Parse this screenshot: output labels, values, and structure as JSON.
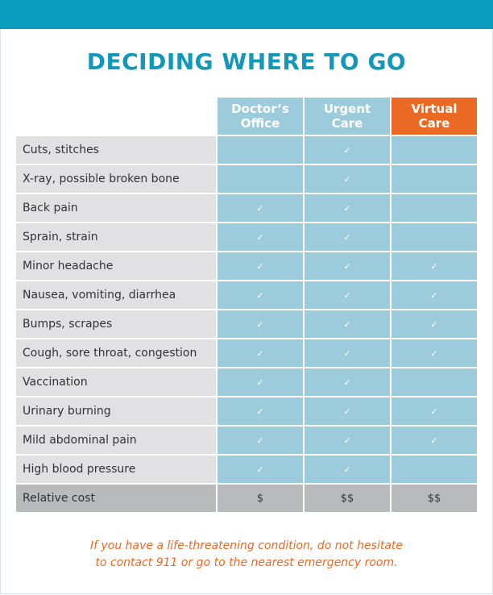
{
  "header": {
    "title": "DECIDING WHERE TO GO"
  },
  "table": {
    "columns": [
      "Doctor’s Office",
      "Urgent Care",
      "Virtual Care"
    ],
    "rows": [
      [
        "Cuts, stitches",
        null,
        "✓",
        null
      ],
      [
        "X-ray, possible broken bone",
        null,
        "✓",
        null
      ],
      [
        "Back pain",
        "✓",
        "✓",
        null
      ],
      [
        "Sprain, strain",
        "✓",
        "✓",
        null
      ],
      [
        "Minor headache",
        "✓",
        "✓",
        "✓"
      ],
      [
        "Nausea, vomiting, diarrhea",
        "✓",
        "✓",
        "✓"
      ],
      [
        "Bumps, scrapes",
        "✓",
        "✓",
        "✓"
      ],
      [
        "Cough, sore throat, congestion",
        "✓",
        "✓",
        "✓"
      ],
      [
        "Vaccination",
        "✓",
        "✓",
        null
      ],
      [
        "Urinary burning",
        "✓",
        "✓",
        "✓"
      ],
      [
        "Mild abdominal pain",
        "✓",
        "✓",
        "✓"
      ],
      [
        "High blood pressure",
        "✓",
        "✓",
        null
      ],
      [
        "Relative cost",
        "$",
        "$$",
        "$$"
      ]
    ]
  },
  "footer": {
    "lines": [
      "If you have a life-threatening condition, do not hesitate",
      "to contact 911 or go to the nearest emergency room."
    ]
  }
}
